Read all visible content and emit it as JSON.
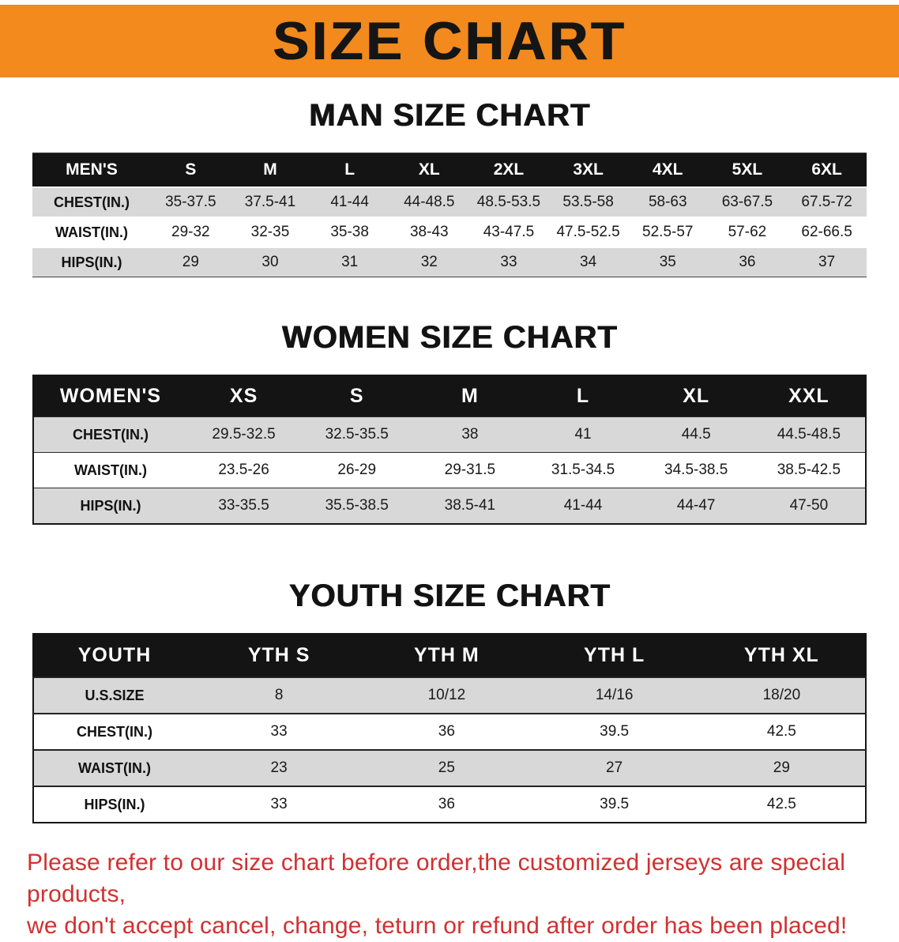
{
  "banner": {
    "title": "SIZE CHART",
    "bg_color": "#F28A1D",
    "text_color": "#151515"
  },
  "sections": [
    {
      "id": "men",
      "heading": "MAN SIZE CHART",
      "header": [
        "MEN'S",
        "S",
        "M",
        "L",
        "XL",
        "2XL",
        "3XL",
        "4XL",
        "5XL",
        "6XL"
      ],
      "rows": [
        [
          "CHEST(IN.)",
          "35-37.5",
          "37.5-41",
          "41-44",
          "44-48.5",
          "48.5-53.5",
          "53.5-58",
          "58-63",
          "63-67.5",
          "67.5-72"
        ],
        [
          "WAIST(IN.)",
          "29-32",
          "32-35",
          "35-38",
          "38-43",
          "43-47.5",
          "47.5-52.5",
          "52.5-57",
          "57-62",
          "62-66.5"
        ],
        [
          "HIPS(IN.)",
          "29",
          "30",
          "31",
          "32",
          "33",
          "34",
          "35",
          "36",
          "37"
        ]
      ]
    },
    {
      "id": "women",
      "heading": "WOMEN SIZE CHART",
      "header": [
        "WOMEN'S",
        "XS",
        "S",
        "M",
        "L",
        "XL",
        "XXL"
      ],
      "rows": [
        [
          "CHEST(IN.)",
          "29.5-32.5",
          "32.5-35.5",
          "38",
          "41",
          "44.5",
          "44.5-48.5"
        ],
        [
          "WAIST(IN.)",
          "23.5-26",
          "26-29",
          "29-31.5",
          "31.5-34.5",
          "34.5-38.5",
          "38.5-42.5"
        ],
        [
          "HIPS(IN.)",
          "33-35.5",
          "35.5-38.5",
          "38.5-41",
          "41-44",
          "44-47",
          "47-50"
        ]
      ]
    },
    {
      "id": "youth",
      "heading": "YOUTH SIZE CHART",
      "header": [
        "YOUTH",
        "YTH S",
        "YTH M",
        "YTH L",
        "YTH XL"
      ],
      "rows": [
        [
          "U.S.SIZE",
          "8",
          "10/12",
          "14/16",
          "18/20"
        ],
        [
          "CHEST(IN.)",
          "33",
          "36",
          "39.5",
          "42.5"
        ],
        [
          "WAIST(IN.)",
          "23",
          "25",
          "27",
          "29"
        ],
        [
          "HIPS(IN.)",
          "33",
          "36",
          "39.5",
          "42.5"
        ]
      ]
    }
  ],
  "disclaimer": {
    "color": "#D23030",
    "line1": "Please refer to our size chart before order,the customized jerseys are special products,",
    "line2": "we don't accept cancel, change, teturn or refund after order has been placed!"
  }
}
